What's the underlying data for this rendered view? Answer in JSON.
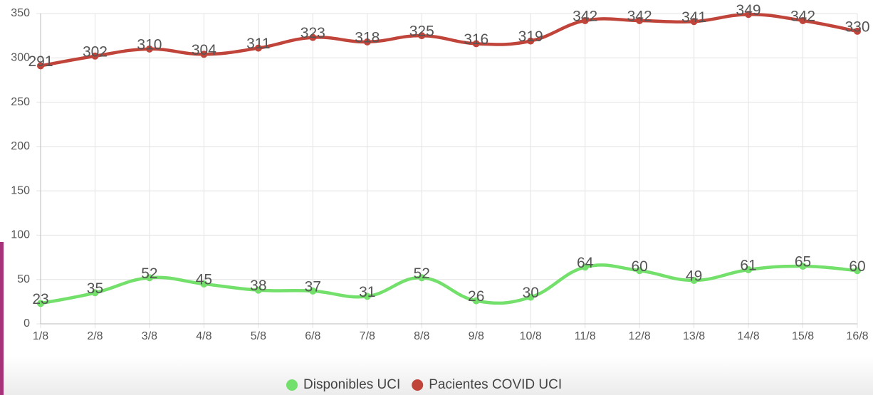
{
  "chart_data": {
    "type": "line",
    "categories": [
      "1/8",
      "2/8",
      "3/8",
      "4/8",
      "5/8",
      "6/8",
      "7/8",
      "8/8",
      "9/8",
      "10/8",
      "11/8",
      "12/8",
      "13/8",
      "14/8",
      "15/8",
      "16/8"
    ],
    "series": [
      {
        "name": "Disponibles UCI",
        "color": "#72e06a",
        "values": [
          23,
          35,
          52,
          45,
          38,
          37,
          31,
          52,
          26,
          30,
          64,
          60,
          49,
          61,
          65,
          60
        ]
      },
      {
        "name": "Pacientes COVID UCI",
        "color": "#c0443a",
        "values": [
          291,
          302,
          310,
          304,
          311,
          323,
          318,
          325,
          316,
          319,
          342,
          342,
          341,
          349,
          342,
          330
        ]
      }
    ],
    "ylim": [
      0,
      350
    ],
    "yticks": [
      0,
      50,
      100,
      150,
      200,
      250,
      300,
      350
    ],
    "grid": true
  }
}
